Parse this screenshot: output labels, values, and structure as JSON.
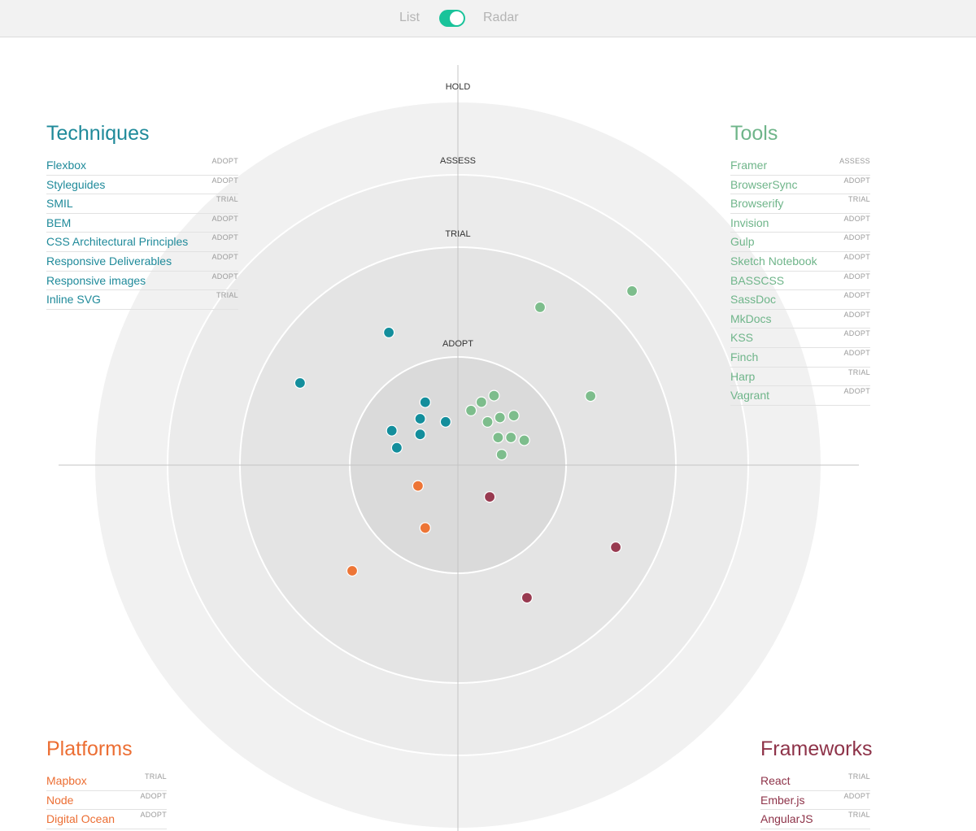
{
  "toggle": {
    "left_label": "List",
    "right_label": "Radar",
    "state": "radar"
  },
  "colors": {
    "techniques": "#138e9c",
    "tools": "#7dbd8c",
    "platforms": "#ed7536",
    "frameworks": "#983a50",
    "ring_outer": "#f1f1f1",
    "ring_mid": "#ebebeb",
    "ring_trial": "#e4e4e4",
    "ring_adopt": "#dadada"
  },
  "chart_data": {
    "type": "scatter",
    "rings": [
      "ADOPT",
      "TRIAL",
      "ASSESS",
      "HOLD"
    ],
    "quadrants": [
      {
        "key": "techniques",
        "title": "Techniques",
        "items": [
          {
            "name": "Flexbox",
            "status": "ADOPT"
          },
          {
            "name": "Styleguides",
            "status": "ADOPT"
          },
          {
            "name": "SMIL",
            "status": "TRIAL"
          },
          {
            "name": "BEM",
            "status": "ADOPT"
          },
          {
            "name": "CSS Architectural Principles",
            "status": "ADOPT"
          },
          {
            "name": "Responsive Deliverables",
            "status": "ADOPT"
          },
          {
            "name": "Responsive images",
            "status": "ADOPT"
          },
          {
            "name": "Inline SVG",
            "status": "TRIAL"
          }
        ]
      },
      {
        "key": "tools",
        "title": "Tools",
        "items": [
          {
            "name": "Framer",
            "status": "ASSESS"
          },
          {
            "name": "BrowserSync",
            "status": "ADOPT"
          },
          {
            "name": "Browserify",
            "status": "TRIAL"
          },
          {
            "name": "Invision",
            "status": "ADOPT"
          },
          {
            "name": "Gulp",
            "status": "ADOPT"
          },
          {
            "name": "Sketch Notebook",
            "status": "ADOPT"
          },
          {
            "name": "BASSCSS",
            "status": "ADOPT"
          },
          {
            "name": "SassDoc",
            "status": "ADOPT"
          },
          {
            "name": "MkDocs",
            "status": "ADOPT"
          },
          {
            "name": "KSS",
            "status": "ADOPT"
          },
          {
            "name": "Finch",
            "status": "ADOPT"
          },
          {
            "name": "Harp",
            "status": "TRIAL"
          },
          {
            "name": "Vagrant",
            "status": "ADOPT"
          }
        ]
      },
      {
        "key": "platforms",
        "title": "Platforms",
        "items": [
          {
            "name": "Mapbox",
            "status": "TRIAL"
          },
          {
            "name": "Node",
            "status": "ADOPT"
          },
          {
            "name": "Digital Ocean",
            "status": "ADOPT"
          }
        ]
      },
      {
        "key": "frameworks",
        "title": "Frameworks",
        "items": [
          {
            "name": "React",
            "status": "TRIAL"
          },
          {
            "name": "Ember.js",
            "status": "ADOPT"
          },
          {
            "name": "AngularJS",
            "status": "TRIAL"
          }
        ]
      }
    ]
  }
}
